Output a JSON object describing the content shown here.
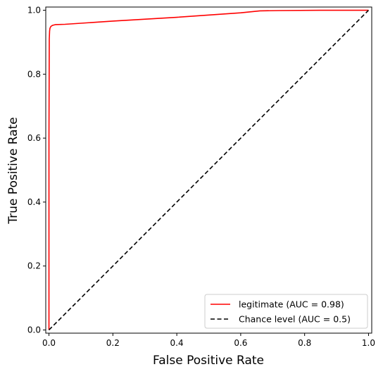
{
  "chart_data": {
    "type": "line",
    "title": "",
    "xlabel": "False Positive Rate",
    "ylabel": "True Positive Rate",
    "xlim": [
      -0.01,
      1.01
    ],
    "ylim": [
      -0.01,
      1.01
    ],
    "xticks": [
      0.0,
      0.2,
      0.4,
      0.6,
      0.8,
      1.0
    ],
    "yticks": [
      0.0,
      0.2,
      0.4,
      0.6,
      0.8,
      1.0
    ],
    "xtick_labels": [
      "0.0",
      "0.2",
      "0.4",
      "0.6",
      "0.8",
      "1.0"
    ],
    "ytick_labels": [
      "0.0",
      "0.2",
      "0.4",
      "0.6",
      "0.8",
      "1.0"
    ],
    "grid": false,
    "legend_position": "lower-right",
    "series": [
      {
        "name": "legitimate (AUC = 0.98)",
        "color": "#ff0000",
        "style": "solid",
        "x": [
          0.0,
          0.0,
          0.001,
          0.002,
          0.003,
          0.005,
          0.008,
          0.012,
          0.02,
          0.05,
          0.2,
          0.4,
          0.6,
          0.66,
          0.72,
          0.85,
          1.0
        ],
        "y": [
          0.0,
          0.6,
          0.91,
          0.935,
          0.943,
          0.948,
          0.951,
          0.953,
          0.955,
          0.956,
          0.966,
          0.978,
          0.992,
          0.998,
          0.999,
          1.0,
          1.0
        ]
      },
      {
        "name": "Chance level (AUC = 0.5)",
        "color": "#000000",
        "style": "dashed",
        "x": [
          0.0,
          1.0
        ],
        "y": [
          0.0,
          1.0
        ]
      }
    ]
  }
}
